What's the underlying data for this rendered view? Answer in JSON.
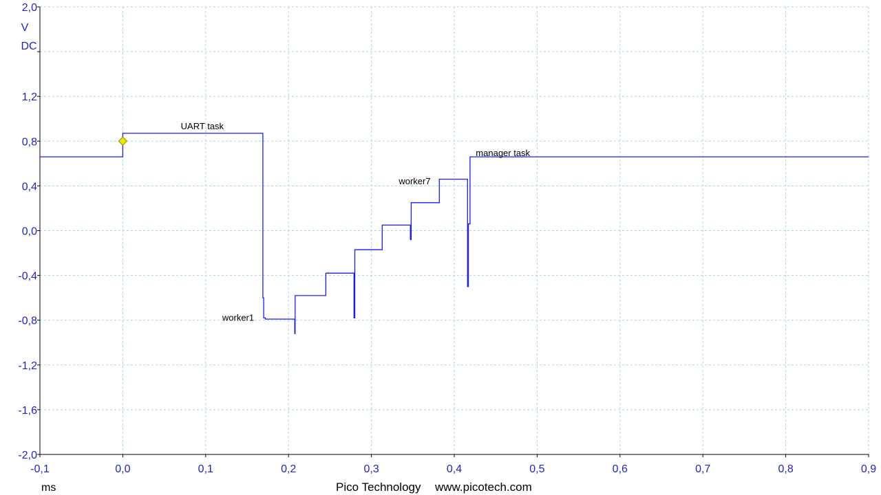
{
  "chart_data": {
    "type": "line",
    "ylabel": "V",
    "ymode": "DC",
    "xunit": "ms",
    "xlim": [
      -0.1,
      0.9
    ],
    "ylim": [
      -2.0,
      2.0
    ],
    "grid": true,
    "xticks": [
      -0.1,
      0.0,
      0.1,
      0.2,
      0.3,
      0.4,
      0.5,
      0.6,
      0.7,
      0.8,
      0.9
    ],
    "xtick_labels": [
      "-0,1",
      "0,0",
      "0,1",
      "0,2",
      "0,3",
      "0,4",
      "0,5",
      "0,6",
      "0,7",
      "0,8",
      "0,9"
    ],
    "yticks": [
      2.0,
      1.6,
      1.2,
      0.8,
      0.4,
      0.0,
      -0.4,
      -0.8,
      -1.2,
      -1.6,
      -2.0
    ],
    "ytick_labels": [
      "2,0",
      "",
      "1,2",
      "0,8",
      "0,4",
      "0,0",
      "-0,4",
      "-0,8",
      "-1,2",
      "-1,6",
      "-2,0"
    ],
    "trigger": {
      "x": 0.0,
      "y": 0.8,
      "color": "#e8e800"
    },
    "series": [
      {
        "color": "#1a1aff",
        "x": [
          -0.1,
          0.0,
          0.0,
          0.169,
          0.169,
          0.17,
          0.17,
          0.172,
          0.172,
          0.2075,
          0.2075,
          0.208,
          0.208,
          0.209,
          0.209,
          0.245,
          0.245,
          0.279,
          0.279,
          0.28,
          0.28,
          0.281,
          0.281,
          0.313,
          0.313,
          0.347,
          0.347,
          0.348,
          0.348,
          0.349,
          0.349,
          0.382,
          0.382,
          0.416,
          0.416,
          0.417,
          0.417,
          0.419,
          0.419,
          0.9
        ],
        "y": [
          0.66,
          0.66,
          0.87,
          0.87,
          -0.6,
          -0.6,
          -0.78,
          -0.78,
          -0.79,
          -0.79,
          -0.92,
          -0.92,
          -0.58,
          -0.58,
          -0.58,
          -0.58,
          -0.38,
          -0.38,
          -0.78,
          -0.78,
          -0.17,
          -0.17,
          -0.17,
          -0.17,
          0.05,
          0.05,
          -0.08,
          -0.08,
          0.25,
          0.25,
          0.25,
          0.25,
          0.46,
          0.46,
          -0.5,
          -0.5,
          0.06,
          0.06,
          0.66,
          0.66
        ]
      }
    ],
    "annotations": [
      {
        "text": "UART task",
        "x": 0.07,
        "y": 0.93
      },
      {
        "text": "worker1",
        "x": 0.12,
        "y": -0.78
      },
      {
        "text": "worker7",
        "x": 0.333,
        "y": 0.44
      },
      {
        "text": "manager task",
        "x": 0.426,
        "y": 0.69
      }
    ],
    "footer_left": "Pico Technology",
    "footer_right": "www.picotech.com"
  },
  "colors": {
    "axis_text": "#2222cc",
    "grid": "#a8d8e0",
    "axis_line": "#000000",
    "trace": "#1a1aff"
  }
}
